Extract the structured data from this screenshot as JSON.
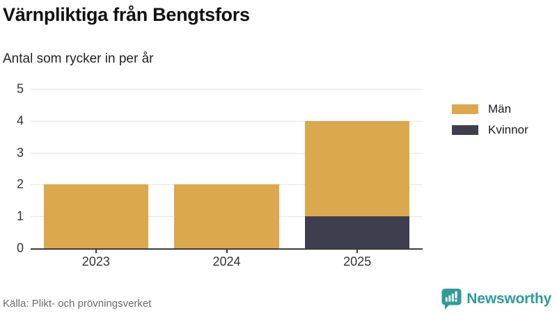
{
  "header": {
    "title": "Värnpliktiga från Bengtsfors",
    "subtitle": "Antal som rycker in per år"
  },
  "chart_data": {
    "type": "bar",
    "stacked": true,
    "title": "Värnpliktiga från Bengtsfors",
    "subtitle": "Antal som rycker in per år",
    "categories": [
      "2023",
      "2024",
      "2025"
    ],
    "series": [
      {
        "name": "Män",
        "color": "#DBA84E",
        "values": [
          2,
          2,
          3
        ]
      },
      {
        "name": "Kvinnor",
        "color": "#3E3E4F",
        "values": [
          0,
          0,
          1
        ]
      }
    ],
    "totals": [
      2,
      2,
      4
    ],
    "xlabel": "",
    "ylabel": "",
    "ylim": [
      0,
      5
    ],
    "yticks": [
      0,
      1,
      2,
      3,
      4,
      5
    ],
    "grid": true,
    "legend_position": "right"
  },
  "legend": {
    "items": [
      {
        "label": "Män",
        "color": "#DBA84E"
      },
      {
        "label": "Kvinnor",
        "color": "#3E3E4F"
      }
    ]
  },
  "footer": {
    "source": "Källa: Plikt- och prövningsverket",
    "brand": "Newsworthy"
  },
  "colors": {
    "men": "#DBA84E",
    "women": "#3E3E4F",
    "gridline": "#E6E6E6",
    "axis": "#3A3A3A",
    "tick_text": "#333333",
    "muted_text": "#6A6A6A",
    "brand_teal": "#2E9C96"
  }
}
